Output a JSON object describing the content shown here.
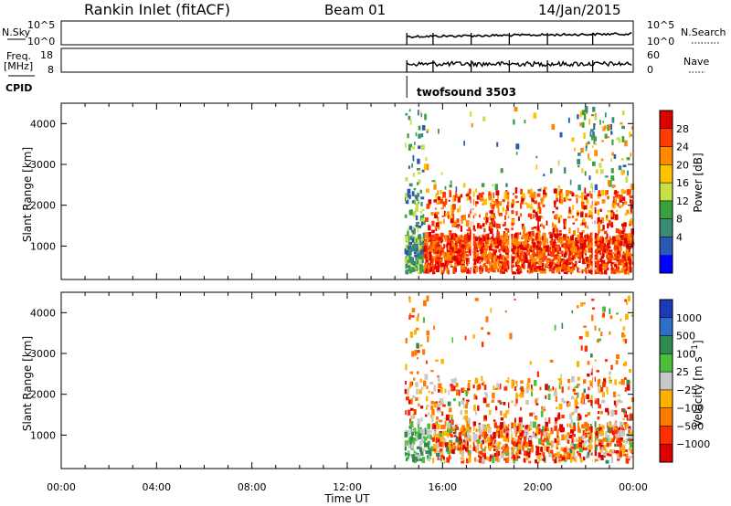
{
  "header": {
    "station": "Rankin Inlet (fitACF)",
    "beam": "Beam 01",
    "date": "14/Jan/2015"
  },
  "strips": {
    "nsky_label": "N.Sky",
    "nsky_ticks": [
      "10^5",
      "10^0"
    ],
    "nsky_right_ticks": [
      "10^5",
      "10^0"
    ],
    "nsearch_label": "N.Search",
    "freq_label_top": "Freq.",
    "freq_label_unit": "[MHz]",
    "freq_ticks": [
      "18",
      "8"
    ],
    "nave_ticks": [
      "60",
      "0"
    ],
    "nave_label": "Nave",
    "cpid_label": "CPID",
    "cpid_name": "twofsound 3503",
    "nsky_onset_hour": 14.5,
    "cpid_onset_hour": 14.5
  },
  "chart_data": [
    {
      "type": "heatmap",
      "name": "power",
      "ylabel": "Slant Range [km]",
      "y_ticks": [
        1000,
        2000,
        3000,
        4000
      ],
      "ylim": [
        180,
        4500
      ],
      "xlim_hours": [
        0,
        24
      ],
      "data_onset_hour": 14.4,
      "colorbar": {
        "label": "Power [dB]",
        "ticks": [
          "28",
          "24",
          "20",
          "16",
          "12",
          "8",
          "4"
        ],
        "colors": [
          "#e00000",
          "#ff3c00",
          "#ff8a00",
          "#ffc200",
          "#c8e048",
          "#3aa040",
          "#3a8a78",
          "#2a5ab0",
          "#0000ff"
        ]
      }
    },
    {
      "type": "heatmap",
      "name": "velocity",
      "ylabel": "Slant Range [km]",
      "y_ticks": [
        1000,
        2000,
        3000,
        4000
      ],
      "ylim": [
        180,
        4500
      ],
      "xlim_hours": [
        0,
        24
      ],
      "data_onset_hour": 14.4,
      "colorbar": {
        "label": "Velocity [m s^-1]",
        "ticks": [
          "1000",
          "500",
          "100",
          "25",
          "−25",
          "−100",
          "−500",
          "−1000"
        ],
        "colors": [
          "#1a3ab8",
          "#2f6fc8",
          "#2f8a50",
          "#48c038",
          "#c8c8c8",
          "#ffb000",
          "#ff7a00",
          "#ff3000",
          "#e00000"
        ]
      }
    }
  ],
  "time_axis": {
    "label": "Time UT",
    "ticks": [
      "00:00",
      "04:00",
      "08:00",
      "12:00",
      "16:00",
      "20:00",
      "00:00"
    ]
  }
}
